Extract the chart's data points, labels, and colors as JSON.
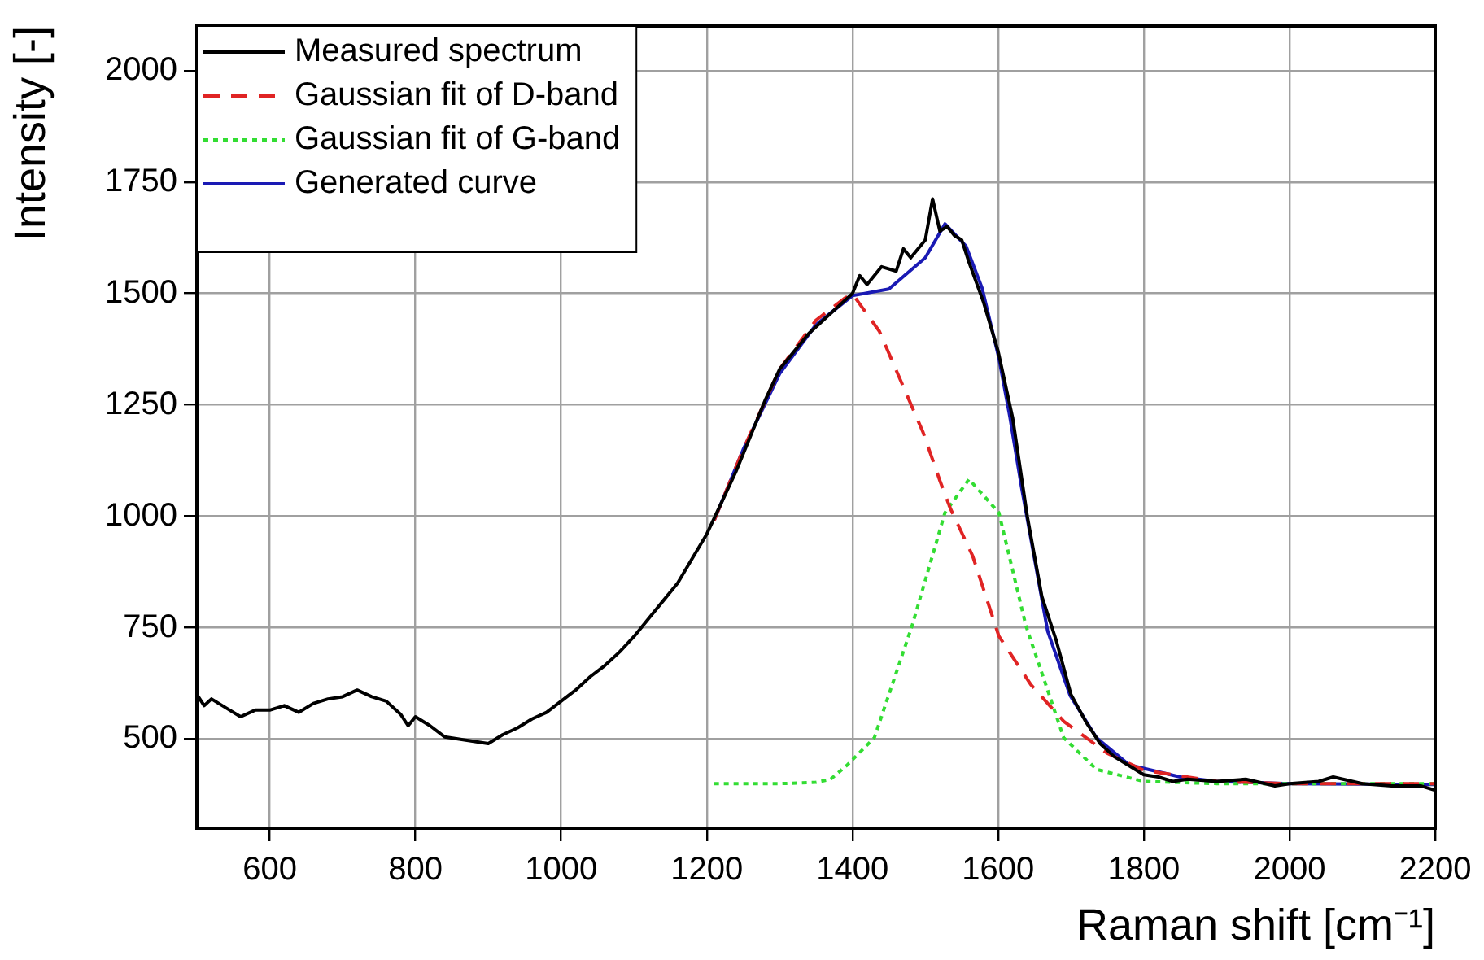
{
  "chart_data": {
    "type": "line",
    "xlabel": "Raman shift [cm⁻¹]",
    "ylabel": "Intensity [-]",
    "xlim": [
      500,
      2200
    ],
    "xticks": [
      600,
      800,
      1000,
      1200,
      1400,
      1600,
      1800,
      2000,
      2200
    ],
    "ylim": [
      300,
      2100
    ],
    "yticks": [
      500,
      750,
      1000,
      1250,
      1500,
      1750,
      2000
    ],
    "grid": true,
    "legend": "top left",
    "marker": "none",
    "series": [
      {
        "name": "Measured spectrum",
        "color": "#000000",
        "line_style": "solid",
        "x": [
          500,
          510,
          520,
          540,
          560,
          580,
          600,
          620,
          640,
          660,
          680,
          700,
          720,
          740,
          760,
          780,
          790,
          800,
          820,
          840,
          860,
          880,
          900,
          920,
          940,
          960,
          980,
          1000,
          1020,
          1040,
          1060,
          1080,
          1100,
          1120,
          1140,
          1160,
          1180,
          1200,
          1220,
          1240,
          1260,
          1280,
          1300,
          1320,
          1340,
          1360,
          1380,
          1400,
          1410,
          1420,
          1440,
          1460,
          1470,
          1480,
          1500,
          1510,
          1520,
          1530,
          1540,
          1550,
          1560,
          1580,
          1600,
          1620,
          1640,
          1660,
          1680,
          1700,
          1720,
          1740,
          1760,
          1780,
          1800,
          1820,
          1840,
          1860,
          1900,
          1940,
          1980,
          2000,
          2040,
          2060,
          2100,
          2140,
          2180,
          2200
        ],
        "values": [
          600,
          575,
          590,
          570,
          550,
          565,
          565,
          575,
          560,
          580,
          590,
          595,
          610,
          595,
          585,
          555,
          530,
          550,
          530,
          505,
          500,
          495,
          490,
          510,
          525,
          545,
          560,
          585,
          610,
          640,
          665,
          695,
          730,
          770,
          810,
          850,
          905,
          960,
          1030,
          1100,
          1180,
          1260,
          1330,
          1370,
          1410,
          1440,
          1470,
          1500,
          1540,
          1520,
          1560,
          1550,
          1600,
          1580,
          1620,
          1712,
          1640,
          1650,
          1630,
          1620,
          1570,
          1480,
          1370,
          1220,
          1000,
          820,
          720,
          600,
          540,
          490,
          460,
          440,
          420,
          415,
          405,
          410,
          405,
          410,
          395,
          400,
          405,
          415,
          400,
          395,
          395,
          385
        ]
      },
      {
        "name": "Gaussian fit of D-band",
        "color": "#e02424",
        "line_style": "dashed",
        "x": [
          1210,
          1250,
          1300,
          1350,
          1390,
          1400,
          1437,
          1475,
          1497,
          1520,
          1534,
          1565,
          1601,
          1645,
          1690,
          1750,
          1800,
          1900,
          2000,
          2200
        ],
        "values": [
          990,
          1150,
          1330,
          1440,
          1490,
          1499,
          1415,
          1271,
          1188,
          1080,
          1019,
          911,
          731,
          622,
          540,
          468,
          430,
          405,
          400,
          400
        ]
      },
      {
        "name": "Gaussian fit of G-band",
        "color": "#33dd33",
        "line_style": "dotted",
        "x": [
          1210,
          1300,
          1350,
          1370,
          1393,
          1430,
          1482,
          1527,
          1560,
          1601,
          1638,
          1690,
          1735,
          1800,
          1900,
          2000,
          2200
        ],
        "values": [
          400,
          400,
          403,
          410,
          442,
          503,
          755,
          1008,
          1083,
          1008,
          755,
          503,
          432,
          405,
          400,
          400,
          400
        ]
      },
      {
        "name": "Generated curve",
        "color": "#1a1ab4",
        "line_style": "solid",
        "x": [
          1210,
          1250,
          1300,
          1350,
          1400,
          1450,
          1500,
          1527,
          1556,
          1578,
          1601,
          1616,
          1632,
          1668,
          1699,
          1735,
          1780,
          1850,
          1900,
          2000,
          2200
        ],
        "values": [
          990,
          1150,
          1320,
          1430,
          1495,
          1510,
          1580,
          1656,
          1606,
          1512,
          1355,
          1224,
          1066,
          742,
          597,
          503,
          442,
          415,
          405,
          400,
          398
        ]
      }
    ]
  }
}
